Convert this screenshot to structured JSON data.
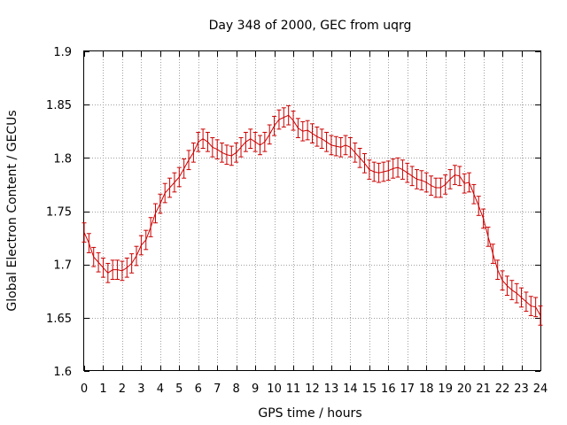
{
  "chart_data": {
    "type": "line",
    "title": "Day 348 of 2000, GEC from uqrg",
    "xlabel": "GPS time / hours",
    "ylabel": "Global Electron Content / GECUs",
    "xlim": [
      0,
      24
    ],
    "ylim": [
      1.6,
      1.9
    ],
    "x_ticks": [
      "0",
      "1",
      "2",
      "3",
      "4",
      "5",
      "6",
      "7",
      "8",
      "9",
      "10",
      "11",
      "12",
      "13",
      "14",
      "15",
      "16",
      "17",
      "18",
      "19",
      "20",
      "21",
      "22",
      "23",
      "24"
    ],
    "y_ticks": [
      "1.6",
      "1.65",
      "1.7",
      "1.75",
      "1.8",
      "1.85",
      "1.9"
    ],
    "grid": true,
    "error_bar": 0.009,
    "series_color": "#cc0000",
    "series": [
      {
        "x": [
          0,
          0.25,
          0.5,
          0.75,
          1,
          1.25,
          1.5,
          1.75,
          2,
          2.25,
          2.5,
          2.75,
          3,
          3.25,
          3.5,
          3.75,
          4,
          4.25,
          4.5,
          4.75,
          5,
          5.25,
          5.5,
          5.75,
          6,
          6.25,
          6.5,
          6.75,
          7,
          7.25,
          7.5,
          7.75,
          8,
          8.25,
          8.5,
          8.75,
          9,
          9.25,
          9.5,
          9.75,
          10,
          10.25,
          10.5,
          10.75,
          11,
          11.25,
          11.5,
          11.75,
          12,
          12.25,
          12.5,
          12.75,
          13,
          13.25,
          13.5,
          13.75,
          14,
          14.25,
          14.5,
          14.75,
          15,
          15.25,
          15.5,
          15.75,
          16,
          16.25,
          16.5,
          16.75,
          17,
          17.25,
          17.5,
          17.75,
          18,
          18.25,
          18.5,
          18.75,
          19,
          19.25,
          19.5,
          19.75,
          20,
          20.25,
          20.5,
          20.75,
          21,
          21.25,
          21.5,
          21.75,
          22,
          22.25,
          22.5,
          22.75,
          23,
          23.25,
          23.5,
          23.75,
          24
        ],
        "y": [
          1.73,
          1.72,
          1.707,
          1.702,
          1.697,
          1.692,
          1.695,
          1.695,
          1.694,
          1.697,
          1.701,
          1.708,
          1.718,
          1.723,
          1.735,
          1.748,
          1.757,
          1.767,
          1.772,
          1.777,
          1.782,
          1.79,
          1.798,
          1.805,
          1.815,
          1.818,
          1.815,
          1.81,
          1.808,
          1.805,
          1.803,
          1.802,
          1.805,
          1.81,
          1.815,
          1.818,
          1.815,
          1.812,
          1.815,
          1.822,
          1.83,
          1.836,
          1.838,
          1.84,
          1.835,
          1.828,
          1.825,
          1.826,
          1.823,
          1.82,
          1.818,
          1.815,
          1.812,
          1.811,
          1.81,
          1.812,
          1.81,
          1.805,
          1.8,
          1.795,
          1.789,
          1.787,
          1.786,
          1.787,
          1.788,
          1.79,
          1.791,
          1.789,
          1.786,
          1.783,
          1.78,
          1.779,
          1.777,
          1.774,
          1.772,
          1.772,
          1.775,
          1.78,
          1.784,
          1.783,
          1.776,
          1.777,
          1.766,
          1.755,
          1.743,
          1.726,
          1.71,
          1.695,
          1.685,
          1.68,
          1.676,
          1.673,
          1.669,
          1.665,
          1.661,
          1.66,
          1.652
        ]
      }
    ]
  }
}
